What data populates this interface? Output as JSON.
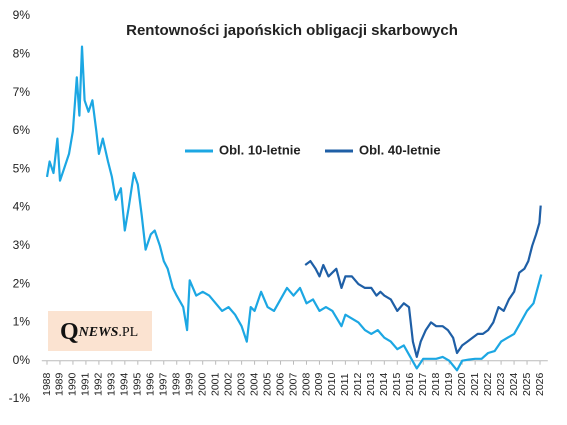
{
  "chart_data": {
    "type": "line",
    "title": "Rentowności japońskich obligacji skarbowych",
    "watermark": {
      "initial": "Q",
      "rest": "NEWS",
      "suffix": ".PL"
    },
    "legend": "top-center",
    "grid": false,
    "xlim": [
      1987.6,
      2026.6
    ],
    "xticks": [
      1988,
      1989,
      1990,
      1991,
      1992,
      1993,
      1994,
      1995,
      1996,
      1997,
      1998,
      1999,
      2000,
      2001,
      2002,
      2003,
      2004,
      2005,
      2006,
      2007,
      2008,
      2009,
      2010,
      2011,
      2012,
      2013,
      2014,
      2015,
      2016,
      2017,
      2018,
      2019,
      2020,
      2021,
      2022,
      2023,
      2024,
      2025,
      2026
    ],
    "ylim": [
      -1,
      9
    ],
    "yticks": [
      {
        "value": -1,
        "label": "-1%"
      },
      {
        "value": 0,
        "label": "0%"
      },
      {
        "value": 1,
        "label": "1%"
      },
      {
        "value": 2,
        "label": "2%"
      },
      {
        "value": 3,
        "label": "3%"
      },
      {
        "value": 4,
        "label": "4%"
      },
      {
        "value": 5,
        "label": "5%"
      },
      {
        "value": 6,
        "label": "6%"
      },
      {
        "value": 7,
        "label": "7%"
      },
      {
        "value": 8,
        "label": "8%"
      },
      {
        "value": 9,
        "label": "9%"
      }
    ],
    "series": [
      {
        "name": "Obl. 10-letnie",
        "color": "#1ca7e3",
        "x": [
          1988.0,
          1988.2,
          1988.5,
          1988.8,
          1989.0,
          1989.3,
          1989.7,
          1990.0,
          1990.3,
          1990.5,
          1990.7,
          1990.9,
          1991.2,
          1991.5,
          1991.8,
          1992.0,
          1992.3,
          1992.7,
          1993.0,
          1993.3,
          1993.7,
          1994.0,
          1994.3,
          1994.7,
          1995.0,
          1995.3,
          1995.6,
          1996.0,
          1996.3,
          1996.7,
          1997.0,
          1997.3,
          1997.7,
          1998.0,
          1998.5,
          1998.8,
          1999.0,
          1999.5,
          2000.0,
          2000.5,
          2001.0,
          2001.5,
          2002.0,
          2002.5,
          2003.0,
          2003.4,
          2003.7,
          2004.0,
          2004.5,
          2005.0,
          2005.5,
          2006.0,
          2006.5,
          2007.0,
          2007.5,
          2008.0,
          2008.5,
          2009.0,
          2009.5,
          2010.0,
          2010.7,
          2011.0,
          2011.5,
          2012.0,
          2012.5,
          2013.0,
          2013.5,
          2014.0,
          2014.5,
          2015.0,
          2015.5,
          2016.0,
          2016.5,
          2017.0,
          2017.5,
          2018.0,
          2018.5,
          2019.0,
          2019.6,
          2020.0,
          2020.5,
          2021.0,
          2021.5,
          2022.0,
          2022.5,
          2023.0,
          2023.5,
          2024.0,
          2024.5,
          2025.0,
          2025.5,
          2025.9,
          2026.1
        ],
        "values": [
          4.8,
          5.2,
          4.9,
          5.8,
          4.7,
          5.0,
          5.4,
          6.0,
          7.4,
          6.4,
          8.2,
          6.8,
          6.5,
          6.8,
          6.0,
          5.4,
          5.8,
          5.2,
          4.8,
          4.2,
          4.5,
          3.4,
          4.0,
          4.9,
          4.6,
          3.8,
          2.9,
          3.3,
          3.4,
          3.0,
          2.6,
          2.4,
          1.9,
          1.7,
          1.4,
          0.8,
          2.1,
          1.7,
          1.8,
          1.7,
          1.5,
          1.3,
          1.4,
          1.2,
          0.9,
          0.5,
          1.4,
          1.3,
          1.8,
          1.4,
          1.3,
          1.6,
          1.9,
          1.7,
          1.9,
          1.5,
          1.6,
          1.3,
          1.4,
          1.3,
          0.9,
          1.2,
          1.1,
          1.0,
          0.8,
          0.7,
          0.8,
          0.6,
          0.5,
          0.3,
          0.4,
          0.1,
          -0.2,
          0.05,
          0.05,
          0.05,
          0.1,
          0.0,
          -0.25,
          0.0,
          0.03,
          0.05,
          0.05,
          0.2,
          0.25,
          0.5,
          0.6,
          0.7,
          1.0,
          1.3,
          1.5,
          2.0,
          2.25
        ]
      },
      {
        "name": "Obl. 40-letnie",
        "color": "#1f5fa6",
        "x": [
          2007.9,
          2008.3,
          2008.7,
          2009.0,
          2009.3,
          2009.7,
          2010.0,
          2010.3,
          2010.7,
          2011.0,
          2011.5,
          2012.0,
          2012.5,
          2013.0,
          2013.4,
          2013.7,
          2014.0,
          2014.5,
          2015.0,
          2015.5,
          2015.9,
          2016.2,
          2016.5,
          2016.8,
          2017.2,
          2017.6,
          2018.0,
          2018.5,
          2018.9,
          2019.3,
          2019.6,
          2020.0,
          2020.4,
          2020.8,
          2021.2,
          2021.6,
          2022.0,
          2022.4,
          2022.8,
          2023.2,
          2023.6,
          2024.0,
          2024.4,
          2024.8,
          2025.1,
          2025.4,
          2025.7,
          2025.95,
          2026.05
        ],
        "values": [
          2.5,
          2.6,
          2.4,
          2.2,
          2.5,
          2.2,
          2.3,
          2.4,
          1.9,
          2.2,
          2.2,
          2.0,
          1.9,
          1.9,
          1.7,
          1.8,
          1.7,
          1.6,
          1.3,
          1.5,
          1.4,
          0.5,
          0.1,
          0.5,
          0.8,
          1.0,
          0.9,
          0.9,
          0.8,
          0.6,
          0.2,
          0.4,
          0.5,
          0.6,
          0.7,
          0.7,
          0.8,
          1.0,
          1.4,
          1.3,
          1.6,
          1.8,
          2.3,
          2.4,
          2.6,
          3.0,
          3.3,
          3.6,
          4.05
        ]
      }
    ]
  }
}
